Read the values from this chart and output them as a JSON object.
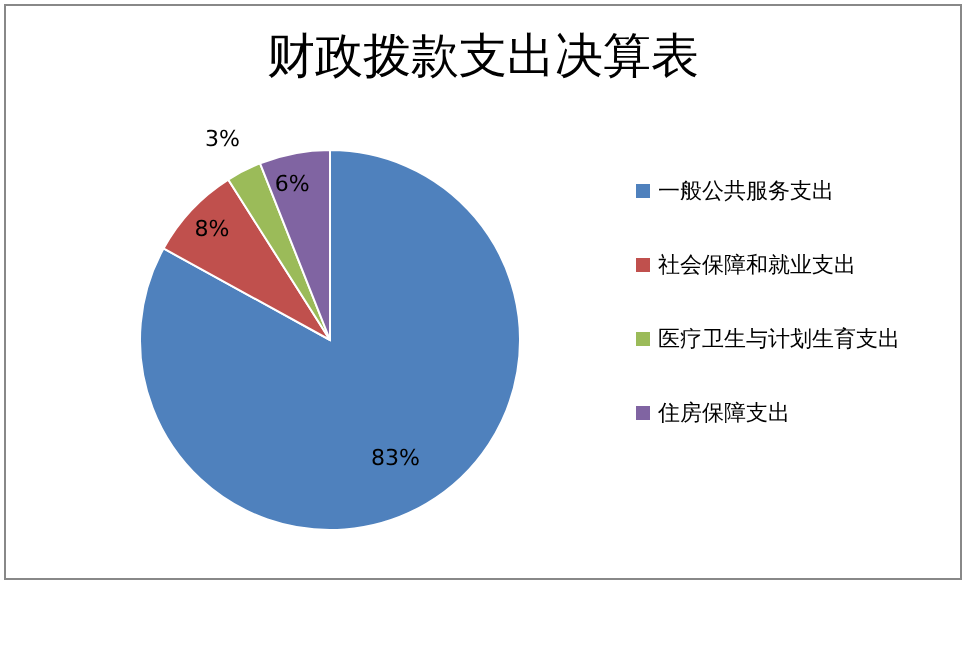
{
  "chart_data": {
    "type": "pie",
    "title": "财政拨款支出决算表",
    "categories": [
      "一般公共服务支出",
      "社会保障和就业支出",
      "医疗卫生与计划生育支出",
      "住房保障支出"
    ],
    "values": [
      83,
      8,
      3,
      6
    ],
    "colors": [
      "#4f81bd",
      "#c0504d",
      "#9bbb59",
      "#8064a2"
    ],
    "value_labels": [
      "83%",
      "8%",
      "3%",
      "6%"
    ],
    "legend": "right"
  }
}
